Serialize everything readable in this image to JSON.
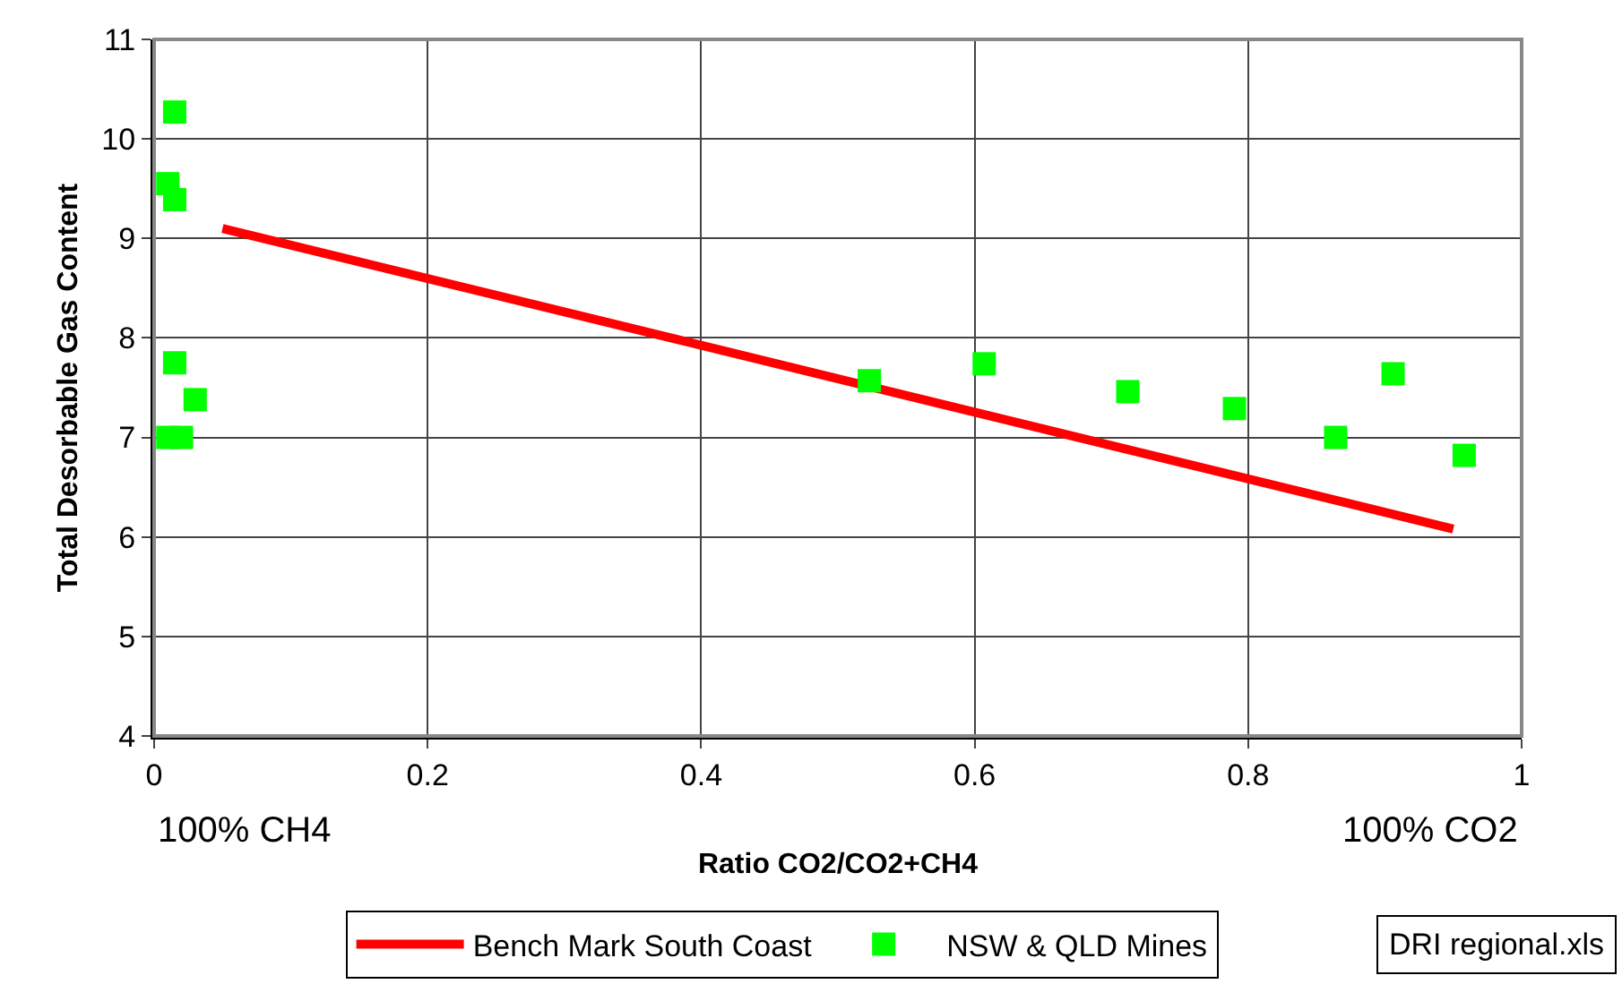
{
  "chart_data": {
    "type": "scatter",
    "xlabel": "Ratio CO2/CO2+CH4",
    "ylabel": "Total Desorbable Gas Content",
    "xlim": [
      0,
      1
    ],
    "xticks": [
      0,
      0.2,
      0.4,
      0.6,
      0.8,
      1
    ],
    "ylim": [
      4,
      11
    ],
    "yticks": [
      4,
      5,
      6,
      7,
      8,
      9,
      10,
      11
    ],
    "grid": true,
    "legend": "bottom",
    "series": [
      {
        "name": "Bench Mark South Coast",
        "type": "line",
        "color": "#ff0000",
        "marker": "none",
        "x": [
          0.05,
          0.95
        ],
        "values": [
          9.1,
          6.08
        ]
      },
      {
        "name": "NSW & QLD Mines",
        "type": "scatter",
        "color": "#00ff00",
        "marker": "square",
        "x": [
          0.01,
          0.015,
          0.015,
          0.015,
          0.01,
          0.02,
          0.03,
          0.523,
          0.607,
          0.712,
          0.79,
          0.864,
          0.906,
          0.958
        ],
        "values": [
          9.55,
          10.27,
          9.39,
          7.75,
          7.0,
          7.0,
          7.38,
          7.57,
          7.74,
          7.46,
          7.29,
          7.0,
          7.64,
          6.82
        ]
      }
    ],
    "annotations": [
      "100% CH4",
      "100% CO2",
      "DRI regional.xls"
    ]
  }
}
